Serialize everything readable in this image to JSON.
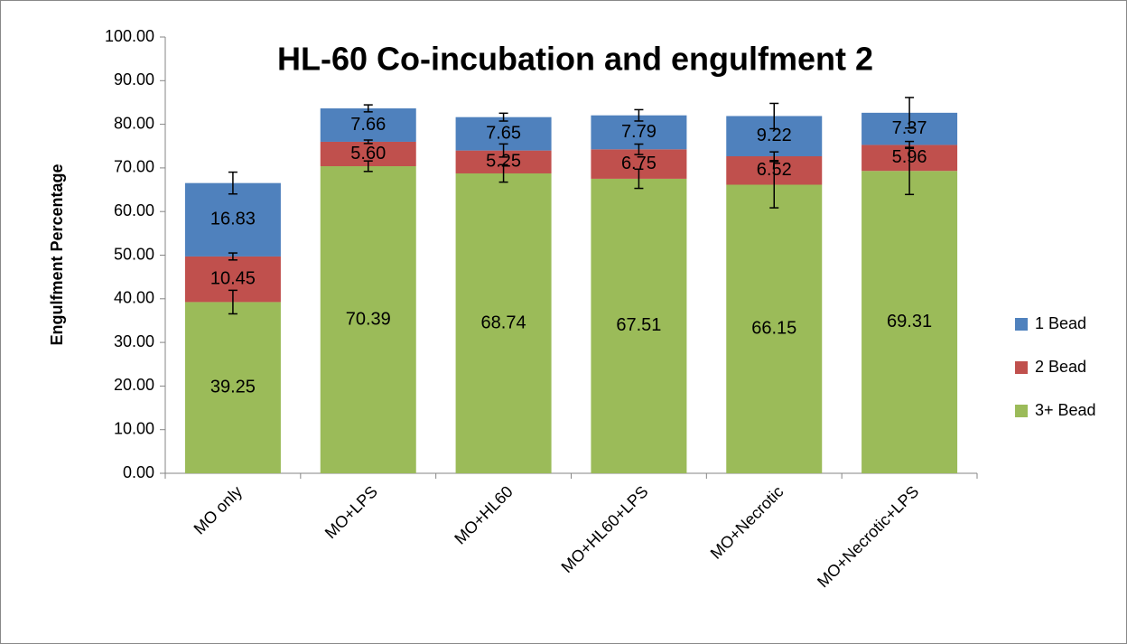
{
  "chart_data": {
    "type": "stacked_bar",
    "title": "HL-60 Co-incubation and engulfment 2",
    "y_label": "Engulfment Percentage",
    "categories": [
      "MO only",
      "MO+LPS",
      "MO+HL60",
      "MO+HL60+LPS",
      "MO+Necrotic",
      "MO+Necrotic+LPS"
    ],
    "series": [
      {
        "name": "3+ Bead",
        "color": "#9bbb59",
        "values": [
          39.25,
          70.39,
          68.74,
          67.51,
          66.15,
          69.31
        ],
        "value_labels": [
          "39.25",
          "70.39",
          "68.74",
          "67.51",
          "66.15",
          "69.31"
        ],
        "errors": [
          2.7,
          1.2,
          2.0,
          2.2,
          5.3,
          5.4
        ]
      },
      {
        "name": "2 Bead",
        "color": "#c0504d",
        "values": [
          10.45,
          5.6,
          5.25,
          6.75,
          6.52,
          5.96
        ],
        "value_labels": [
          "10.45",
          "5.60",
          "5.25",
          "6.75",
          "6.52",
          "5.96"
        ],
        "errors": [
          0.8,
          0.4,
          1.5,
          1.2,
          1.0,
          0.8
        ]
      },
      {
        "name": "1 Bead",
        "color": "#4f81bd",
        "values": [
          16.83,
          7.66,
          7.65,
          7.79,
          9.22,
          7.37
        ],
        "value_labels": [
          "16.83",
          "7.66",
          "7.65",
          "7.79",
          "9.22",
          "7.37"
        ],
        "errors": [
          2.5,
          0.8,
          0.9,
          1.3,
          2.9,
          3.5
        ]
      }
    ],
    "ylim": [
      0,
      100
    ],
    "yticks": [
      {
        "value": 0,
        "label": "0.00"
      },
      {
        "value": 10,
        "label": "10.00"
      },
      {
        "value": 20,
        "label": "20.00"
      },
      {
        "value": 30,
        "label": "30.00"
      },
      {
        "value": 40,
        "label": "40.00"
      },
      {
        "value": 50,
        "label": "50.00"
      },
      {
        "value": 60,
        "label": "60.00"
      },
      {
        "value": 70,
        "label": "70.00"
      },
      {
        "value": 80,
        "label": "80.00"
      },
      {
        "value": 90,
        "label": "90.00"
      },
      {
        "value": 100,
        "label": "100.00"
      }
    ],
    "legend": "right"
  }
}
